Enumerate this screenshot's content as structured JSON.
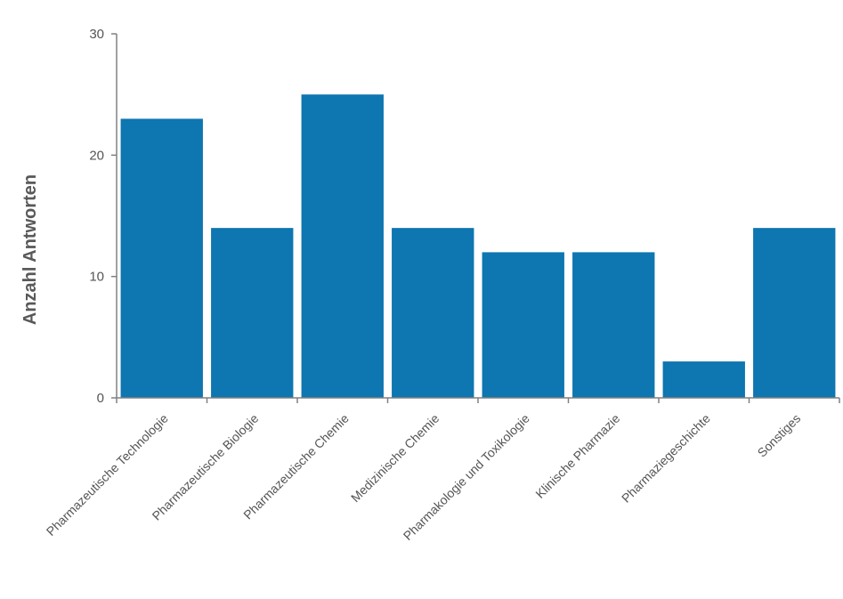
{
  "chart_data": {
    "type": "bar",
    "title": "",
    "xlabel": "",
    "ylabel": "Anzahl Antworten",
    "ylim": [
      0,
      30
    ],
    "yticks": [
      0,
      10,
      20,
      30
    ],
    "grid": false,
    "bar_color": "#0E76B0",
    "categories": [
      "Pharmazeutische Technologie",
      "Pharmazeutische Biologie",
      "Pharmazeutische Chemie",
      "Medizinische Chemie",
      "Pharmakologie und Toxikologie",
      "Klinische Pharmazie",
      "Pharmaziegeschichte",
      "Sonstiges"
    ],
    "values": [
      23,
      14,
      25,
      14,
      12,
      12,
      3,
      14
    ]
  }
}
